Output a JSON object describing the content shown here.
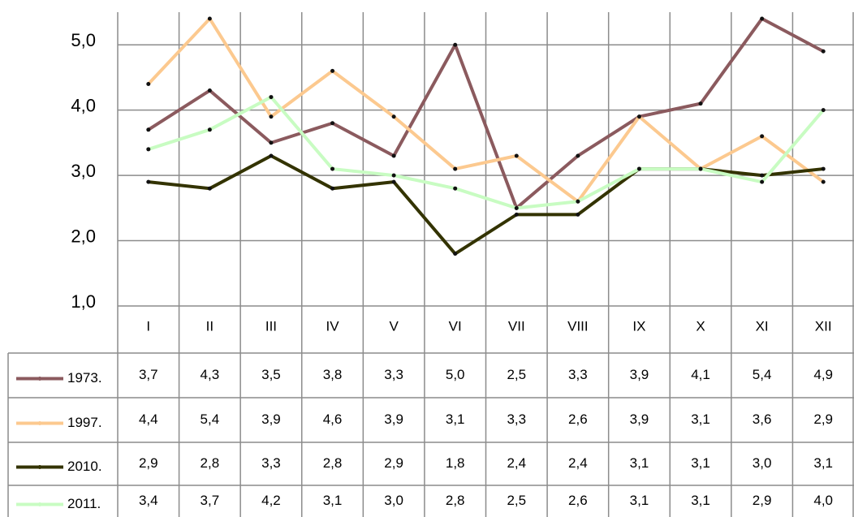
{
  "chart_data": {
    "type": "line",
    "categories": [
      "I",
      "II",
      "III",
      "IV",
      "V",
      "VI",
      "VII",
      "VIII",
      "IX",
      "X",
      "XI",
      "XII"
    ],
    "ylim": [
      1,
      5.5
    ],
    "yticks": [
      {
        "value": 1,
        "label": "1,0"
      },
      {
        "value": 2,
        "label": "2,0"
      },
      {
        "value": 3,
        "label": "3,0"
      },
      {
        "value": 4,
        "label": "4,0"
      },
      {
        "value": 5,
        "label": "5,0"
      }
    ],
    "grid": true,
    "series": [
      {
        "name": "1973.",
        "color": "#8b5a5e",
        "values": [
          3.7,
          4.3,
          3.5,
          3.8,
          3.3,
          5.0,
          2.5,
          3.3,
          3.9,
          4.1,
          5.4,
          4.9
        ],
        "value_labels": [
          "3,7",
          "4,3",
          "3,5",
          "3,8",
          "3,3",
          "5,0",
          "2,5",
          "3,3",
          "3,9",
          "4,1",
          "5,4",
          "4,9"
        ]
      },
      {
        "name": "1997.",
        "color": "#fcc98f",
        "values": [
          4.4,
          5.4,
          3.9,
          4.6,
          3.9,
          3.1,
          3.3,
          2.6,
          3.9,
          3.1,
          3.6,
          2.9
        ],
        "value_labels": [
          "4,4",
          "5,4",
          "3,9",
          "4,6",
          "3,9",
          "3,1",
          "3,3",
          "2,6",
          "3,9",
          "3,1",
          "3,6",
          "2,9"
        ]
      },
      {
        "name": "2010.",
        "color": "#333300",
        "values": [
          2.9,
          2.8,
          3.3,
          2.8,
          2.9,
          1.8,
          2.4,
          2.4,
          3.1,
          3.1,
          3.0,
          3.1
        ],
        "value_labels": [
          "2,9",
          "2,8",
          "3,3",
          "2,8",
          "2,9",
          "1,8",
          "2,4",
          "2,4",
          "3,1",
          "3,1",
          "3,0",
          "3,1"
        ]
      },
      {
        "name": "2011.",
        "color": "#c8fcc2",
        "values": [
          3.4,
          3.7,
          4.2,
          3.1,
          3.0,
          2.8,
          2.5,
          2.6,
          3.1,
          3.1,
          2.9,
          4.0
        ],
        "value_labels": [
          "3,4",
          "3,7",
          "4,2",
          "3,1",
          "3,0",
          "2,8",
          "2,5",
          "2,6",
          "3,1",
          "3,1",
          "2,9",
          "4,0"
        ]
      }
    ]
  }
}
